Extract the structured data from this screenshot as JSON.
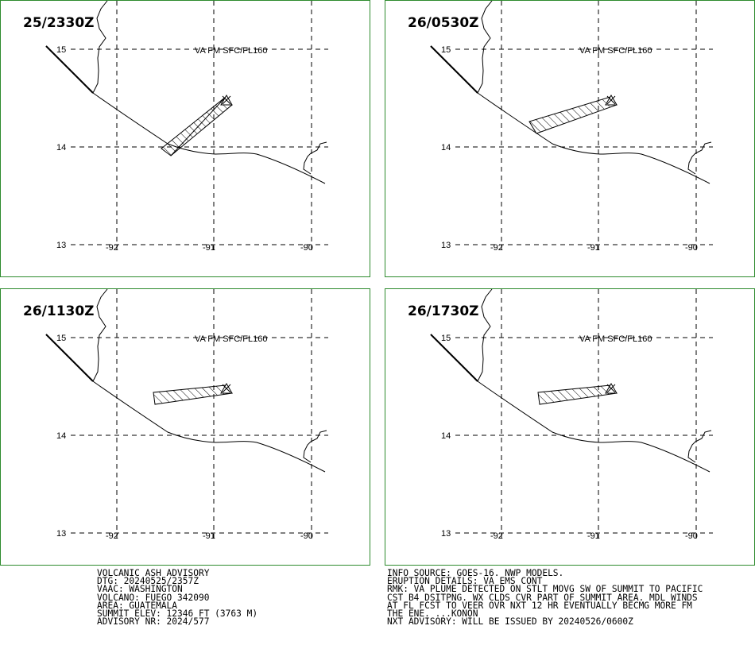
{
  "panels": [
    {
      "time": "25/2330Z",
      "label": "VA FM SFC/FL160",
      "plume": "p1"
    },
    {
      "time": "26/0530Z",
      "label": "VA FM SFC/FL160",
      "plume": "p2"
    },
    {
      "time": "26/1130Z",
      "label": "VA FM SFC/FL160",
      "plume": "p3"
    },
    {
      "time": "26/1730Z",
      "label": "VA FM SFC/FL160",
      "plume": "p3"
    }
  ],
  "axes": {
    "lat_labels": [
      "15",
      "14",
      "13"
    ],
    "lon_labels": [
      "-92",
      "-91",
      "-90"
    ]
  },
  "colors": {
    "border": "#2e8b2e",
    "lines": "#000000"
  },
  "advisory_left": [
    "VOLCANIC ASH ADVISORY",
    "DTG: 20240525/2357Z",
    "VAAC: WASHINGTON",
    "VOLCANO: FUEGO 342090",
    "AREA: GUATEMALA",
    "SUMMIT ELEV: 12346 FT (3763 M)",
    "ADVISORY NR: 2024/577"
  ],
  "advisory_right": [
    "INFO SOURCE: GOES-16. NWP MODELS.",
    "ERUPTION DETAILS: VA EMS CONT",
    "RMK: VA PLUME DETECTED ON STLT MOVG SW OF SUMMIT TO PACIFIC",
    "CST B4 DSITPNG. WX CLDS CVR PART OF SUMMIT AREA. MDL WINDS",
    "AT FL FCST TO VEER OVR NXT 12 HR EVENTUALLY BECMG MORE FM",
    "THE ENE. ...KONON",
    "NXT ADVISORY: WILL BE ISSUED BY 20240526/0600Z"
  ]
}
